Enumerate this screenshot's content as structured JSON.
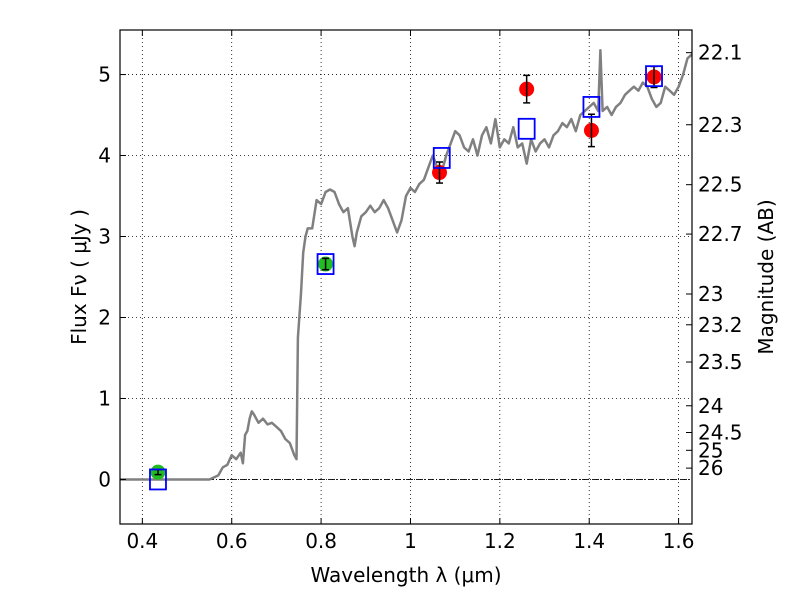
{
  "chart_data": {
    "type": "scatter",
    "title": "",
    "xlabel": "Wavelength  λ (μm)",
    "ylabel": "Flux  Fν  ( μJy )",
    "y2label": "Magnitude (AB)",
    "xlim": [
      0.35,
      1.63
    ],
    "ylim": [
      -0.55,
      5.55
    ],
    "grid": true,
    "x_ticks": [
      0.4,
      0.6,
      0.8,
      1.0,
      1.2,
      1.4,
      1.6
    ],
    "x_tick_labels": [
      "0.4",
      "0.6",
      "0.8",
      "1",
      "1.2",
      "1.4",
      "1.6"
    ],
    "y_ticks": [
      0,
      1,
      2,
      3,
      4,
      5
    ],
    "y_tick_labels": [
      "0",
      "1",
      "2",
      "3",
      "4",
      "5"
    ],
    "y2_ticks": [
      {
        "label": "22.1",
        "flux": 5.27
      },
      {
        "label": "22.3",
        "flux": 4.38
      },
      {
        "label": "22.5",
        "flux": 3.64
      },
      {
        "label": "22.7",
        "flux": 3.03
      },
      {
        "label": "23",
        "flux": 2.29
      },
      {
        "label": "23.2",
        "flux": 1.91
      },
      {
        "label": "23.5",
        "flux": 1.45
      },
      {
        "label": "24",
        "flux": 0.91
      },
      {
        "label": "24.5",
        "flux": 0.58
      },
      {
        "label": "25",
        "flux": 0.36
      },
      {
        "label": "26",
        "flux": 0.14
      }
    ],
    "model_spectrum": {
      "color": "#808080",
      "points": [
        [
          0.35,
          0.0
        ],
        [
          0.4,
          0.0
        ],
        [
          0.45,
          0.0
        ],
        [
          0.5,
          0.0
        ],
        [
          0.55,
          0.0
        ],
        [
          0.57,
          0.05
        ],
        [
          0.58,
          0.15
        ],
        [
          0.59,
          0.18
        ],
        [
          0.6,
          0.3
        ],
        [
          0.61,
          0.25
        ],
        [
          0.62,
          0.33
        ],
        [
          0.625,
          0.2
        ],
        [
          0.63,
          0.55
        ],
        [
          0.635,
          0.6
        ],
        [
          0.64,
          0.75
        ],
        [
          0.645,
          0.84
        ],
        [
          0.65,
          0.8
        ],
        [
          0.66,
          0.7
        ],
        [
          0.67,
          0.75
        ],
        [
          0.68,
          0.68
        ],
        [
          0.69,
          0.7
        ],
        [
          0.7,
          0.65
        ],
        [
          0.71,
          0.6
        ],
        [
          0.72,
          0.5
        ],
        [
          0.73,
          0.45
        ],
        [
          0.74,
          0.3
        ],
        [
          0.745,
          0.25
        ],
        [
          0.748,
          1.75
        ],
        [
          0.755,
          2.3
        ],
        [
          0.76,
          2.8
        ],
        [
          0.765,
          3.0
        ],
        [
          0.77,
          3.1
        ],
        [
          0.78,
          3.1
        ],
        [
          0.79,
          3.45
        ],
        [
          0.8,
          3.4
        ],
        [
          0.81,
          3.55
        ],
        [
          0.82,
          3.58
        ],
        [
          0.83,
          3.55
        ],
        [
          0.84,
          3.4
        ],
        [
          0.85,
          3.3
        ],
        [
          0.86,
          3.35
        ],
        [
          0.87,
          3.0
        ],
        [
          0.875,
          2.88
        ],
        [
          0.88,
          3.05
        ],
        [
          0.89,
          3.25
        ],
        [
          0.9,
          3.3
        ],
        [
          0.91,
          3.38
        ],
        [
          0.92,
          3.3
        ],
        [
          0.93,
          3.35
        ],
        [
          0.94,
          3.45
        ],
        [
          0.95,
          3.35
        ],
        [
          0.96,
          3.2
        ],
        [
          0.97,
          3.05
        ],
        [
          0.98,
          3.2
        ],
        [
          0.99,
          3.5
        ],
        [
          1.0,
          3.6
        ],
        [
          1.01,
          3.55
        ],
        [
          1.02,
          3.65
        ],
        [
          1.03,
          3.7
        ],
        [
          1.04,
          3.85
        ],
        [
          1.05,
          4.0
        ],
        [
          1.06,
          3.85
        ],
        [
          1.07,
          3.8
        ],
        [
          1.08,
          4.0
        ],
        [
          1.09,
          4.15
        ],
        [
          1.1,
          4.3
        ],
        [
          1.11,
          4.25
        ],
        [
          1.12,
          4.1
        ],
        [
          1.13,
          4.05
        ],
        [
          1.14,
          4.2
        ],
        [
          1.15,
          4.0
        ],
        [
          1.16,
          4.25
        ],
        [
          1.17,
          4.35
        ],
        [
          1.18,
          4.15
        ],
        [
          1.19,
          4.45
        ],
        [
          1.2,
          4.1
        ],
        [
          1.21,
          4.2
        ],
        [
          1.22,
          4.15
        ],
        [
          1.23,
          4.35
        ],
        [
          1.24,
          4.1
        ],
        [
          1.25,
          4.15
        ],
        [
          1.26,
          3.9
        ],
        [
          1.27,
          4.2
        ],
        [
          1.28,
          4.05
        ],
        [
          1.29,
          4.15
        ],
        [
          1.3,
          4.2
        ],
        [
          1.31,
          4.1
        ],
        [
          1.32,
          4.25
        ],
        [
          1.33,
          4.3
        ],
        [
          1.34,
          4.4
        ],
        [
          1.35,
          4.35
        ],
        [
          1.36,
          4.45
        ],
        [
          1.37,
          4.3
        ],
        [
          1.38,
          4.5
        ],
        [
          1.39,
          4.55
        ],
        [
          1.4,
          4.6
        ],
        [
          1.41,
          4.65
        ],
        [
          1.42,
          4.55
        ],
        [
          1.425,
          5.3
        ],
        [
          1.43,
          4.55
        ],
        [
          1.44,
          4.6
        ],
        [
          1.45,
          4.5
        ],
        [
          1.46,
          4.6
        ],
        [
          1.47,
          4.65
        ],
        [
          1.48,
          4.75
        ],
        [
          1.49,
          4.8
        ],
        [
          1.5,
          4.85
        ],
        [
          1.51,
          4.8
        ],
        [
          1.52,
          4.9
        ],
        [
          1.53,
          4.85
        ],
        [
          1.54,
          4.7
        ],
        [
          1.55,
          4.6
        ],
        [
          1.56,
          4.65
        ],
        [
          1.57,
          4.85
        ],
        [
          1.58,
          4.8
        ],
        [
          1.59,
          4.75
        ],
        [
          1.6,
          4.85
        ],
        [
          1.61,
          5.0
        ],
        [
          1.62,
          5.2
        ],
        [
          1.63,
          5.25
        ]
      ]
    },
    "series": [
      {
        "marker": "circle",
        "color": "#22bb22",
        "points": [
          {
            "x": 0.435,
            "y": 0.09,
            "err": 0.03
          },
          {
            "x": 0.81,
            "y": 2.66,
            "err": 0.07
          }
        ]
      },
      {
        "marker": "circle",
        "color": "#ff0000",
        "points": [
          {
            "x": 1.065,
            "y": 3.79,
            "err": 0.13
          },
          {
            "x": 1.26,
            "y": 4.82,
            "err": 0.17
          },
          {
            "x": 1.405,
            "y": 4.31,
            "err": 0.2
          },
          {
            "x": 1.545,
            "y": 4.97,
            "err": 0.13
          }
        ]
      },
      {
        "marker": "open-square",
        "color": "#0000ff",
        "points": [
          {
            "x": 0.435,
            "y": 0.0
          },
          {
            "x": 0.81,
            "y": 2.66
          },
          {
            "x": 1.07,
            "y": 3.97
          },
          {
            "x": 1.26,
            "y": 4.33
          },
          {
            "x": 1.405,
            "y": 4.6
          },
          {
            "x": 1.545,
            "y": 4.98
          }
        ]
      }
    ]
  }
}
